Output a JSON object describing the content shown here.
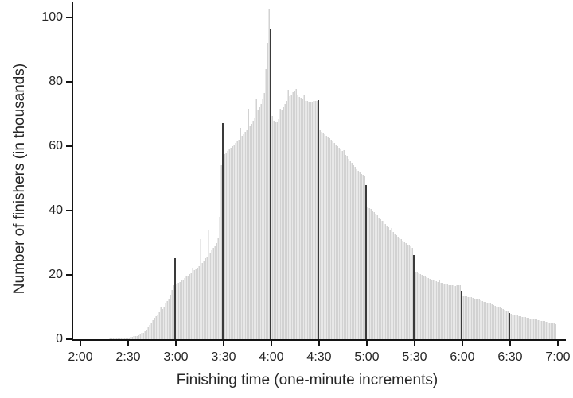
{
  "figure": {
    "colors": {
      "background": "#ffffff",
      "bar": "#d2d2d2",
      "bar_gap": "#e8e8e8",
      "spike_bar": "#3a3a3a",
      "axis": "#141414",
      "text": "#262626"
    }
  },
  "chart_data": {
    "type": "bar",
    "subtype": "histogram",
    "title": "",
    "xlabel": "Finishing time (one-minute increments)",
    "ylabel": "Number of finishers (in thousands)",
    "bin_minutes": 1,
    "x_start_minutes": 120,
    "x_end_minutes": 418,
    "x_tick_labels": [
      "2:00",
      "2:30",
      "3:00",
      "3:30",
      "4:00",
      "4:30",
      "5:00",
      "5:30",
      "6:00",
      "6:30",
      "7:00"
    ],
    "y_ticks": [
      0,
      20,
      40,
      60,
      80,
      100
    ],
    "ylim": [
      0,
      105
    ],
    "grid": false,
    "legend": "none",
    "values": [
      0.02,
      0.02,
      0.02,
      0.03,
      0.03,
      0.03,
      0.04,
      0.04,
      0.04,
      0.05,
      0.05,
      0.06,
      0.07,
      0.08,
      0.09,
      0.1,
      0.11,
      0.12,
      0.13,
      0.14,
      0.15,
      0.18,
      0.21,
      0.24,
      0.27,
      0.3,
      0.36,
      0.42,
      0.48,
      0.54,
      0.6,
      0.7,
      0.8,
      0.9,
      1.0,
      1.1,
      1.3,
      1.6,
      1.9,
      2.1,
      2.4,
      3.0,
      3.7,
      4.4,
      5.2,
      6.0,
      6.6,
      7.2,
      7.7,
      8.3,
      9.8,
      9.5,
      10.2,
      11.0,
      11.8,
      12.6,
      13.8,
      15.2,
      16.8,
      25.1,
      17.2,
      17.5,
      17.8,
      18.2,
      18.6,
      19.0,
      19.4,
      19.8,
      20.2,
      20.6,
      22.3,
      21.4,
      21.9,
      22.3,
      22.8,
      31.1,
      23.8,
      24.5,
      25.2,
      25.8,
      34.0,
      27.0,
      27.6,
      28.3,
      29.0,
      29.8,
      31.5,
      38.0,
      54.0,
      67.2,
      57.5,
      58.1,
      58.6,
      59.1,
      59.5,
      60.0,
      60.5,
      61.0,
      61.5,
      62.0,
      65.7,
      63.2,
      63.8,
      64.4,
      65.0,
      71.5,
      66.2,
      67.0,
      68.0,
      69.0,
      74.7,
      71.0,
      72.0,
      73.2,
      74.5,
      76.5,
      84.0,
      92.0,
      102.7,
      96.5,
      69.5,
      68.0,
      67.3,
      67.6,
      68.3,
      71.5,
      71.3,
      72.2,
      73.2,
      74.2,
      77.5,
      75.6,
      76.1,
      76.8,
      77.0,
      77.9,
      75.8,
      75.4,
      75.0,
      74.7,
      75.9,
      74.2,
      74.0,
      73.9,
      73.8,
      73.9,
      74.0,
      74.0,
      74.1,
      74.3,
      64.9,
      64.4,
      64.0,
      63.7,
      63.3,
      63.0,
      62.5,
      62.0,
      61.5,
      61.0,
      60.5,
      60.0,
      59.5,
      59.0,
      58.5,
      58.8,
      57.4,
      56.7,
      56.1,
      55.4,
      54.8,
      54.1,
      53.5,
      52.8,
      52.3,
      51.8,
      51.4,
      51.0,
      50.9,
      48.0,
      41.2,
      40.8,
      40.4,
      39.9,
      39.4,
      38.9,
      38.4,
      37.8,
      37.3,
      36.7,
      36.8,
      35.7,
      35.2,
      34.7,
      34.2,
      34.5,
      33.3,
      32.8,
      32.4,
      31.9,
      31.5,
      31.1,
      30.7,
      30.3,
      29.9,
      29.5,
      29.2,
      28.8,
      28.4,
      26.2,
      21.0,
      20.7,
      20.5,
      20.2,
      20.0,
      19.8,
      19.5,
      19.3,
      19.1,
      18.8,
      18.6,
      18.4,
      18.3,
      18.1,
      17.9,
      18.2,
      17.6,
      17.5,
      17.3,
      17.2,
      17.0,
      16.9,
      16.8,
      16.7,
      16.7,
      16.6,
      16.7,
      16.7,
      16.9,
      15.1,
      13.6,
      13.5,
      13.4,
      13.2,
      13.1,
      13.0,
      12.9,
      12.7,
      12.6,
      12.4,
      12.3,
      12.1,
      11.9,
      11.7,
      11.6,
      11.4,
      11.2,
      11.0,
      10.8,
      10.6,
      10.4,
      10.2,
      10.0,
      9.8,
      9.6,
      9.4,
      9.2,
      9.0,
      8.7,
      8.2,
      7.9,
      7.7,
      7.6,
      7.4,
      7.3,
      7.2,
      7.1,
      7.0,
      6.9,
      6.8,
      6.7,
      6.6,
      6.5,
      6.4,
      6.3,
      6.2,
      6.1,
      6.0,
      5.9,
      5.8,
      5.7,
      5.6,
      5.5,
      5.4,
      5.3,
      5.2,
      5.1,
      5.0,
      4.8
    ],
    "highlight_indices": [
      59,
      89,
      119,
      149,
      179,
      209,
      239,
      269
    ],
    "highlighted_bins": [
      {
        "ends_at": "3:00",
        "value": 25.1
      },
      {
        "ends_at": "3:30",
        "value": 67.2
      },
      {
        "ends_at": "4:00",
        "value": 96.5
      },
      {
        "ends_at": "4:30",
        "value": 74.3
      },
      {
        "ends_at": "5:00",
        "value": 48.0
      },
      {
        "ends_at": "5:30",
        "value": 26.2
      },
      {
        "ends_at": "6:00",
        "value": 15.1
      },
      {
        "ends_at": "6:30",
        "value": 8.2
      }
    ]
  }
}
